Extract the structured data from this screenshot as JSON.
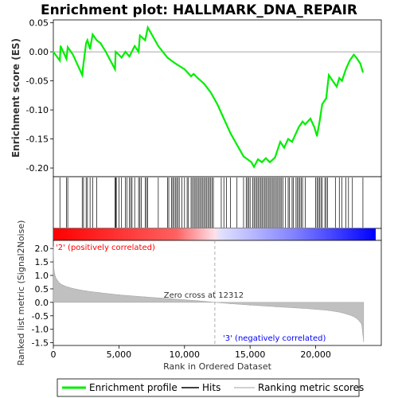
{
  "title": "Enrichment plot: HALLMARK_DNA_REPAIR",
  "colors": {
    "enrichment": "#00ee00",
    "hits": "#000000",
    "metric_fill": "#c0c0c0",
    "positive_label": "#ff0000",
    "negative_label": "#0000ff",
    "bar_positive": "#ff0000",
    "bar_negative": "#0000ff"
  },
  "chart_data": [
    {
      "type": "line",
      "name": "enrichment-profile",
      "ylabel": "Enrichment score (ES)",
      "ylim": [
        -0.215,
        0.055
      ],
      "xlim": [
        0,
        25000
      ],
      "yticks": [
        "0.05",
        "0.00",
        "-0.05",
        "-0.10",
        "-0.15",
        "-0.20"
      ],
      "ytick_values": [
        0.05,
        0.0,
        -0.05,
        -0.1,
        -0.15,
        -0.2
      ],
      "grid": false,
      "series": [
        {
          "name": "Enrichment profile",
          "x": [
            0,
            500,
            550,
            1000,
            1100,
            1500,
            2200,
            2300,
            2500,
            2600,
            2800,
            3000,
            3300,
            3600,
            4000,
            4700,
            4750,
            5000,
            5200,
            5500,
            5800,
            6200,
            6500,
            6600,
            7000,
            7200,
            8000,
            8700,
            9000,
            9300,
            10000,
            10500,
            10700,
            11000,
            11500,
            12000,
            12500,
            13000,
            13500,
            14000,
            14500,
            14800,
            15100,
            15300,
            15600,
            15900,
            16200,
            16500,
            16900,
            17300,
            17600,
            17900,
            18200,
            18500,
            18700,
            19000,
            19200,
            19600,
            19900,
            20100,
            20300,
            20500,
            20800,
            21000,
            21300,
            21600,
            21800,
            22000,
            22300,
            22600,
            22900,
            23100,
            23400,
            23600
          ],
          "y": [
            0.0,
            -0.015,
            0.01,
            -0.012,
            0.008,
            -0.005,
            -0.04,
            -0.02,
            0.015,
            0.02,
            0.005,
            0.03,
            0.02,
            0.015,
            0.0,
            -0.03,
            0.0,
            -0.005,
            -0.01,
            0.0,
            -0.008,
            0.01,
            0.0,
            0.028,
            0.02,
            0.042,
            0.01,
            -0.01,
            -0.015,
            -0.02,
            -0.03,
            -0.042,
            -0.038,
            -0.045,
            -0.055,
            -0.07,
            -0.09,
            -0.115,
            -0.14,
            -0.16,
            -0.18,
            -0.185,
            -0.19,
            -0.198,
            -0.185,
            -0.19,
            -0.183,
            -0.19,
            -0.182,
            -0.155,
            -0.165,
            -0.15,
            -0.155,
            -0.14,
            -0.13,
            -0.12,
            -0.125,
            -0.115,
            -0.13,
            -0.145,
            -0.12,
            -0.09,
            -0.08,
            -0.04,
            -0.05,
            -0.06,
            -0.045,
            -0.05,
            -0.03,
            -0.015,
            -0.005,
            -0.01,
            -0.02,
            -0.035
          ]
        }
      ],
      "hits": [
        500,
        1000,
        1100,
        2200,
        2300,
        2500,
        2600,
        2800,
        3000,
        3300,
        4700,
        4750,
        4800,
        5000,
        5200,
        5500,
        5600,
        5800,
        5900,
        6000,
        6200,
        6500,
        6600,
        6700,
        7000,
        7100,
        7200,
        8000,
        8700,
        8800,
        9000,
        9100,
        9200,
        9300,
        9400,
        9500,
        9600,
        9800,
        10000,
        10200,
        10300,
        10500,
        10600,
        10700,
        10800,
        10900,
        11000,
        11100,
        11200,
        11300,
        11400,
        11500,
        11600,
        11700,
        11800,
        11900,
        12000,
        12100,
        12200,
        12800,
        13000,
        13200,
        13500,
        14000,
        14500,
        14700,
        14800,
        14900,
        15000,
        15200,
        15300,
        15400,
        15500,
        15600,
        15700,
        15800,
        15900,
        16000,
        16100,
        16200,
        16300,
        16400,
        16500,
        16600,
        16700,
        16800,
        16900,
        17000,
        17100,
        17200,
        17300,
        17400,
        17500,
        17700,
        17900,
        18000,
        18200,
        18300,
        18500,
        18600,
        18700,
        18800,
        18900,
        19000,
        19200,
        20000,
        20100,
        20200,
        20300,
        20400,
        20500,
        20700,
        20800,
        20900,
        21500,
        21800,
        22000,
        22300,
        22500,
        22800,
        23600
      ]
    },
    {
      "type": "area",
      "name": "ranked-metric",
      "xlabel": "Rank in Ordered Dataset",
      "ylabel": "Ranked list metric (Signal2Noise)",
      "ylim": [
        -1.6,
        2.3
      ],
      "xlim": [
        0,
        25000
      ],
      "xticks": [
        "0",
        "5,000",
        "10,000",
        "15,000",
        "20,000"
      ],
      "xtick_values": [
        0,
        5000,
        10000,
        15000,
        20000
      ],
      "yticks": [
        "2.0",
        "1.5",
        "1.0",
        "0.5",
        "0.0",
        "-0.5",
        "-1.0",
        "-1.5"
      ],
      "ytick_values": [
        2.0,
        1.5,
        1.0,
        0.5,
        0.0,
        -0.5,
        -1.0,
        -1.5
      ],
      "series": [
        {
          "name": "Ranking metric scores",
          "x": [
            0,
            50,
            150,
            300,
            500,
            800,
            1200,
            1800,
            2500,
            3500,
            5000,
            7000,
            9000,
            11000,
            12312,
            13500,
            15000,
            17000,
            19000,
            21000,
            22000,
            22800,
            23200,
            23500,
            23600,
            23650
          ],
          "y": [
            2.05,
            1.2,
            0.95,
            0.82,
            0.7,
            0.62,
            0.55,
            0.48,
            0.42,
            0.36,
            0.28,
            0.2,
            0.13,
            0.06,
            0.0,
            -0.05,
            -0.1,
            -0.16,
            -0.22,
            -0.3,
            -0.38,
            -0.5,
            -0.62,
            -0.8,
            -1.2,
            -1.45
          ]
        }
      ],
      "annotations": {
        "zero_cross": "Zero cross at 12312",
        "zero_cross_x": 12312,
        "positive": "'2' (positively correlated)",
        "negative": "'3' (negatively correlated)"
      }
    }
  ],
  "legend": {
    "placement": "bottom",
    "items": [
      {
        "label": "Enrichment profile",
        "color": "#00ee00"
      },
      {
        "label": "Hits",
        "color": "#000000"
      },
      {
        "label": "Ranking metric scores",
        "color": "#c0c0c0"
      }
    ]
  }
}
